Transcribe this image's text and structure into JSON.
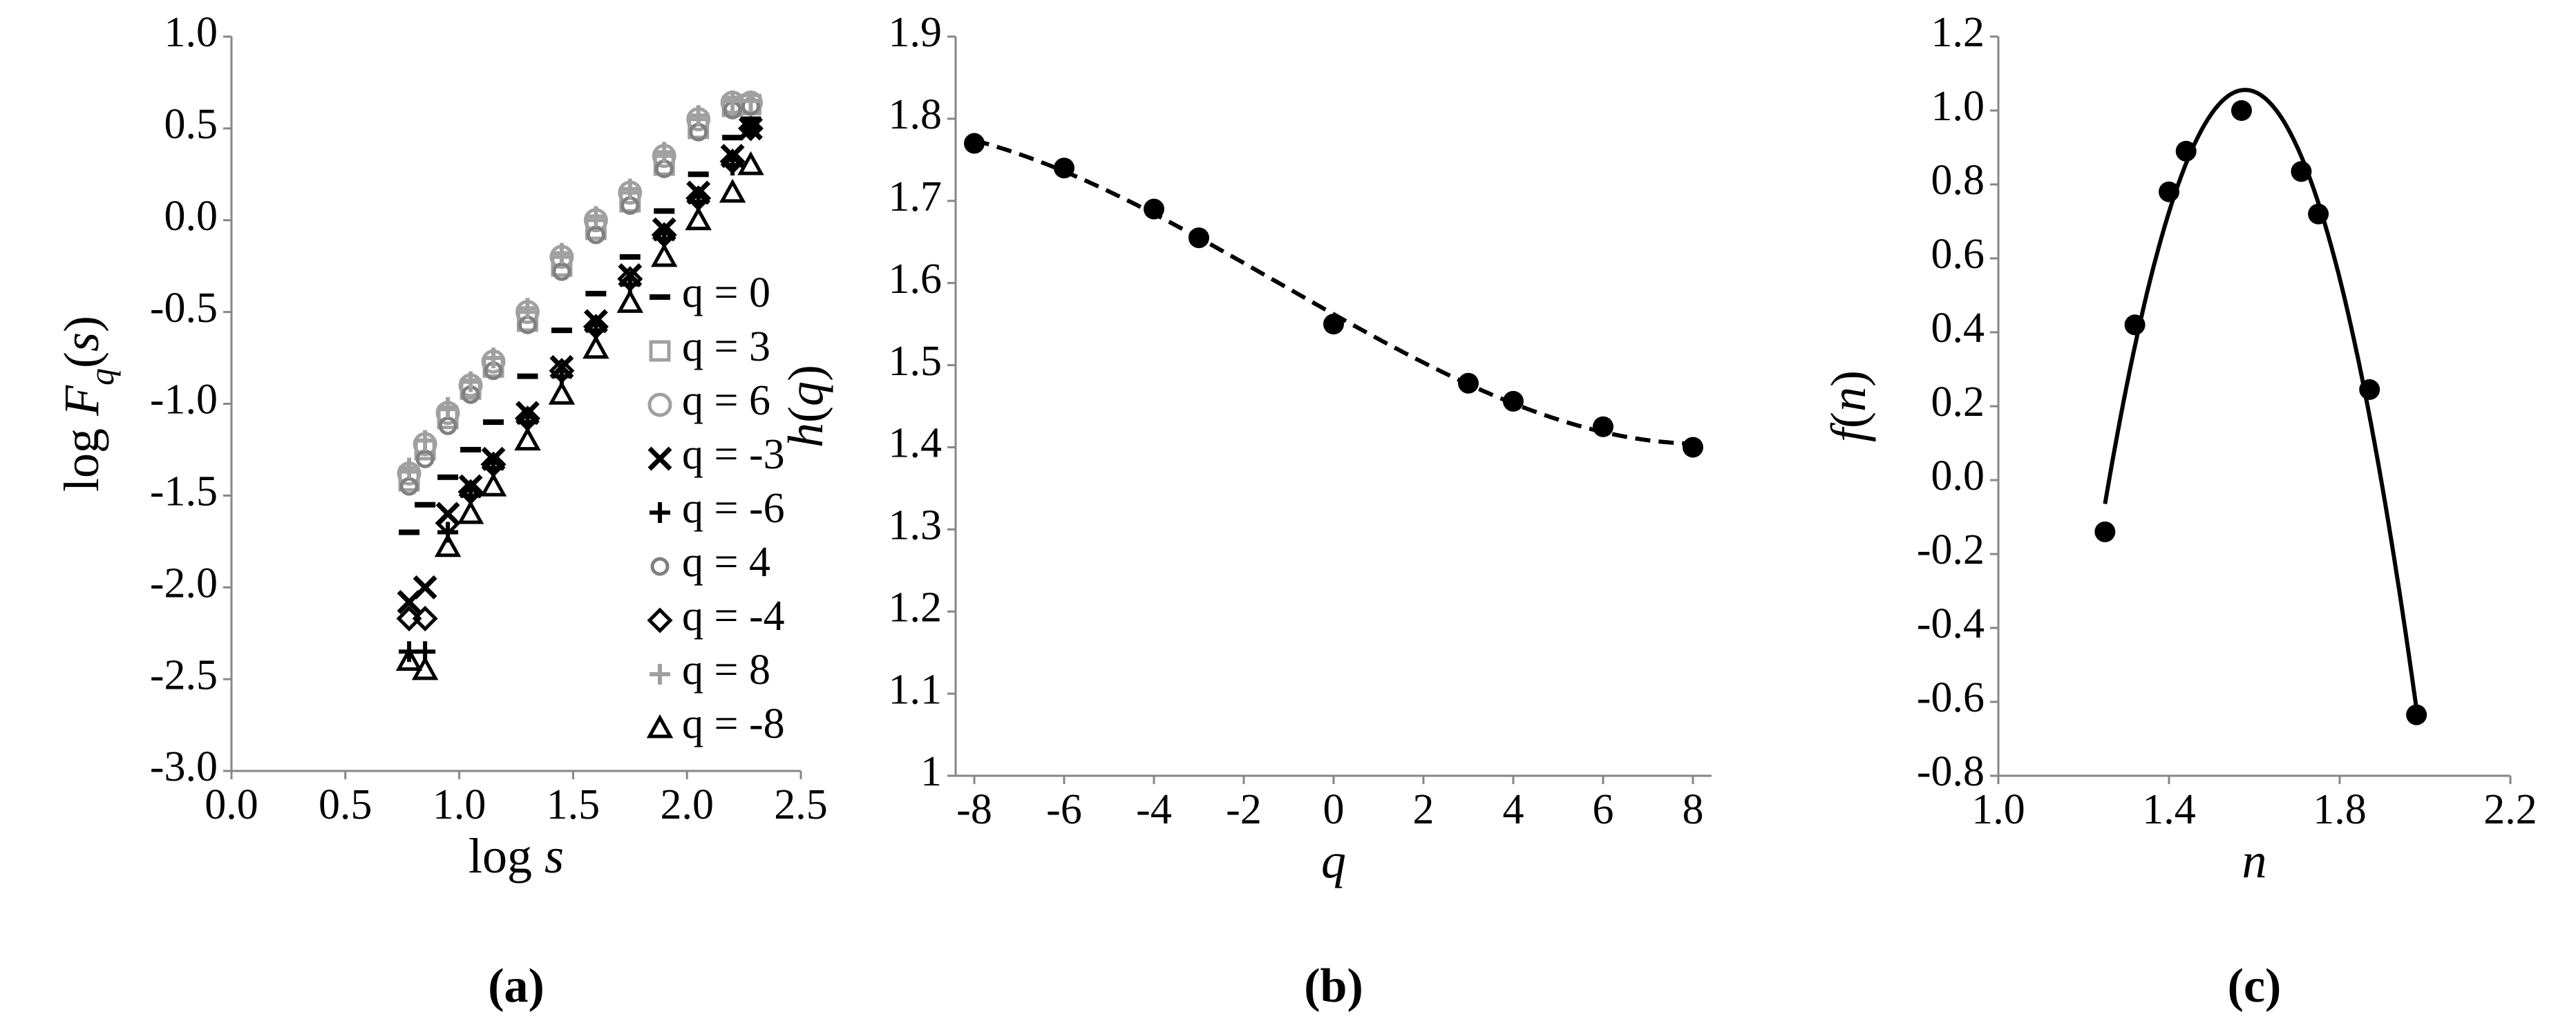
{
  "chart_data": [
    {
      "type": "scatter",
      "caption": "(a)",
      "xlabel": [
        {
          "text": "log "
        },
        {
          "text": "s",
          "italic": true
        }
      ],
      "ylabel": [
        {
          "text": "log "
        },
        {
          "text": "F",
          "italic": true
        },
        {
          "text": "q",
          "italic": true,
          "sub": true
        },
        {
          "text": "("
        },
        {
          "text": "s",
          "italic": true
        },
        {
          "text": ")"
        }
      ],
      "x": [
        0.78,
        0.85,
        0.95,
        1.05,
        1.15,
        1.3,
        1.45,
        1.6,
        1.75,
        1.9,
        2.05,
        2.2,
        2.28
      ],
      "series": [
        {
          "name": "q = 0",
          "color": "#000000",
          "marker": "dash",
          "values": [
            -1.7,
            -1.55,
            -1.4,
            -1.25,
            -1.1,
            -0.85,
            -0.6,
            -0.4,
            -0.2,
            0.05,
            0.25,
            0.45,
            0.55
          ]
        },
        {
          "name": "q = 3",
          "color": "#a0a0a0",
          "marker": "square",
          "values": [
            -1.42,
            -1.25,
            -1.08,
            -0.92,
            -0.8,
            -0.55,
            -0.25,
            -0.05,
            0.1,
            0.3,
            0.5,
            0.62,
            0.63
          ]
        },
        {
          "name": "q = 6",
          "color": "#a0a0a0",
          "marker": "circle",
          "values": [
            -1.38,
            -1.22,
            -1.05,
            -0.9,
            -0.77,
            -0.5,
            -0.2,
            0.0,
            0.15,
            0.35,
            0.55,
            0.64,
            0.64
          ]
        },
        {
          "name": "q = -3",
          "color": "#000000",
          "marker": "x",
          "values": [
            -2.08,
            -2.0,
            -1.6,
            -1.45,
            -1.3,
            -1.05,
            -0.8,
            -0.55,
            -0.3,
            -0.05,
            0.15,
            0.35,
            0.5
          ]
        },
        {
          "name": "q = -6",
          "color": "#000000",
          "marker": "plus",
          "values": [
            -2.35,
            -2.35,
            -1.7,
            -1.5,
            -1.35,
            -1.1,
            -0.85,
            -0.6,
            -0.35,
            -0.1,
            0.1,
            0.3,
            0.5
          ]
        },
        {
          "name": "q = 4",
          "color": "#808080",
          "marker": "circle-small",
          "values": [
            -1.45,
            -1.3,
            -1.12,
            -0.95,
            -0.82,
            -0.57,
            -0.28,
            -0.08,
            0.08,
            0.28,
            0.48,
            0.6,
            0.62
          ]
        },
        {
          "name": "q = -4",
          "color": "#000000",
          "marker": "diamond",
          "values": [
            -2.17,
            -2.17,
            -1.65,
            -1.48,
            -1.33,
            -1.08,
            -0.82,
            -0.58,
            -0.32,
            -0.08,
            0.12,
            0.32,
            0.5
          ]
        },
        {
          "name": "q = 8",
          "color": "#a0a0a0",
          "marker": "plus",
          "values": [
            -1.35,
            -1.2,
            -1.02,
            -0.88,
            -0.75,
            -0.48,
            -0.18,
            0.02,
            0.17,
            0.37,
            0.57,
            0.65,
            0.65
          ]
        },
        {
          "name": "q = -8",
          "color": "#000000",
          "marker": "triangle",
          "values": [
            -2.4,
            -2.45,
            -1.78,
            -1.6,
            -1.45,
            -1.2,
            -0.95,
            -0.7,
            -0.45,
            -0.2,
            0.0,
            0.15,
            0.3
          ]
        }
      ],
      "xlim": [
        0,
        2.5
      ],
      "xticks": [
        {
          "value": 0,
          "label": "0.0"
        },
        {
          "value": 0.5,
          "label": "0.5"
        },
        {
          "value": 1,
          "label": "1.0"
        },
        {
          "value": 1.5,
          "label": "1.5"
        },
        {
          "value": 2,
          "label": "2.0"
        },
        {
          "value": 2.5,
          "label": "2.5"
        }
      ],
      "ylim": [
        -3,
        1
      ],
      "yticks": [
        {
          "value": -3,
          "label": "-3.0"
        },
        {
          "value": -2.5,
          "label": "-2.5"
        },
        {
          "value": -2,
          "label": "-2.0"
        },
        {
          "value": -1.5,
          "label": "-1.5"
        },
        {
          "value": -1,
          "label": "-1.0"
        },
        {
          "value": -0.5,
          "label": "-0.5"
        },
        {
          "value": 0,
          "label": "0.0"
        },
        {
          "value": 0.5,
          "label": "0.5"
        },
        {
          "value": 1,
          "label": "1.0"
        }
      ],
      "legend": "right"
    },
    {
      "type": "scatter",
      "caption": "(b)",
      "xlabel": [
        {
          "text": "q",
          "italic": true
        }
      ],
      "ylabel": [
        {
          "text": "h",
          "italic": true
        },
        {
          "text": "("
        },
        {
          "text": "q",
          "italic": true
        },
        {
          "text": ")"
        }
      ],
      "x": [
        -8,
        -6,
        -4,
        -3,
        0,
        3,
        4,
        6,
        8
      ],
      "series": [
        {
          "color": "#000000",
          "marker": "circle-filled",
          "values": [
            1.77,
            1.74,
            1.69,
            1.655,
            1.55,
            1.478,
            1.456,
            1.425,
            1.4
          ]
        }
      ],
      "trendline": {
        "type": "polynomial",
        "order": 3,
        "style": "dashed"
      },
      "xlim": [
        -8,
        8
      ],
      "xticks": [
        -8,
        -6,
        -4,
        -2,
        0,
        2,
        4,
        6,
        8
      ],
      "ylim": [
        1,
        1.9
      ],
      "yticks": [
        1,
        1.1,
        1.2,
        1.3,
        1.4,
        1.5,
        1.6,
        1.7,
        1.8,
        1.9
      ]
    },
    {
      "type": "scatter",
      "caption": "(c)",
      "xlabel": [
        {
          "text": "n",
          "italic": true
        }
      ],
      "ylabel": [
        {
          "text": "f",
          "italic": true
        },
        {
          "text": "("
        },
        {
          "text": "n",
          "italic": true
        },
        {
          "text": ")"
        }
      ],
      "x": [
        1.25,
        1.32,
        1.4,
        1.44,
        1.57,
        1.71,
        1.75,
        1.87,
        1.98
      ],
      "series": [
        {
          "color": "#000000",
          "marker": "circle-filled",
          "values": [
            -0.14,
            0.42,
            0.78,
            0.89,
            1.0,
            0.835,
            0.72,
            0.245,
            -0.635
          ]
        }
      ],
      "trendline": {
        "type": "polynomial",
        "order": 2,
        "style": "solid"
      },
      "xlim": [
        1,
        2.2
      ],
      "xticks": [
        {
          "value": 1,
          "label": "1.0"
        },
        {
          "value": 1.4,
          "label": "1.4"
        },
        {
          "value": 1.8,
          "label": "1.8"
        },
        {
          "value": 2.2,
          "label": "2.2"
        }
      ],
      "ylim": [
        -0.8,
        1.2
      ],
      "yticks": [
        {
          "value": -0.8,
          "label": "-0.8"
        },
        {
          "value": -0.6,
          "label": "-0.6"
        },
        {
          "value": -0.4,
          "label": "-0.4"
        },
        {
          "value": -0.2,
          "label": "-0.2"
        },
        {
          "value": 0,
          "label": "0.0"
        },
        {
          "value": 0.2,
          "label": "0.2"
        },
        {
          "value": 0.4,
          "label": "0.4"
        },
        {
          "value": 0.6,
          "label": "0.6"
        },
        {
          "value": 0.8,
          "label": "0.8"
        },
        {
          "value": 1,
          "label": "1.0"
        },
        {
          "value": 1.2,
          "label": "1.2"
        }
      ]
    }
  ]
}
